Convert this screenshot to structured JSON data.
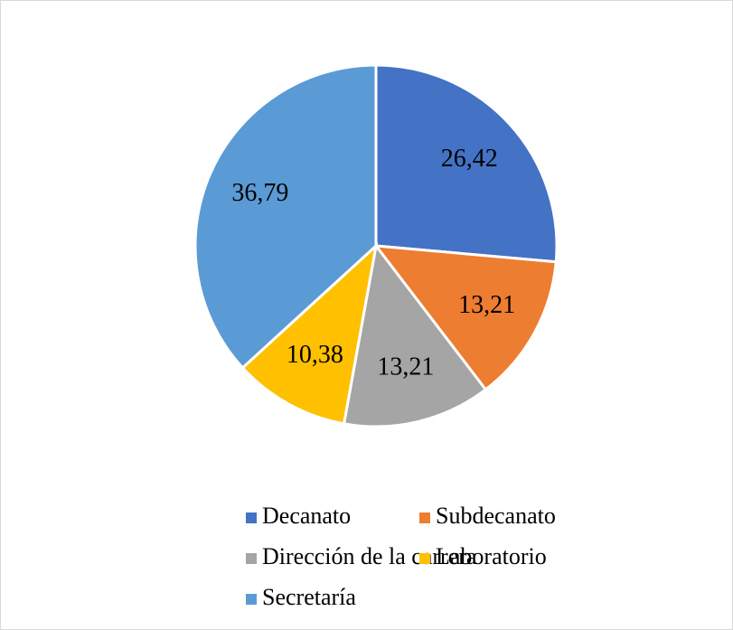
{
  "chart_data": {
    "type": "pie",
    "categories": [
      "Decanato",
      "Subdecanato",
      "Dirección de la carrera",
      "Laboratorio",
      "Secretaría"
    ],
    "values": [
      26.42,
      13.21,
      13.21,
      10.38,
      36.79
    ],
    "value_labels": [
      "26,42",
      "13,21",
      "13,21",
      "10,38",
      "36,79"
    ],
    "colors": [
      "#4472c4",
      "#ed7d31",
      "#a5a5a5",
      "#ffc000",
      "#5b9bd5"
    ],
    "legend": "bottom"
  }
}
